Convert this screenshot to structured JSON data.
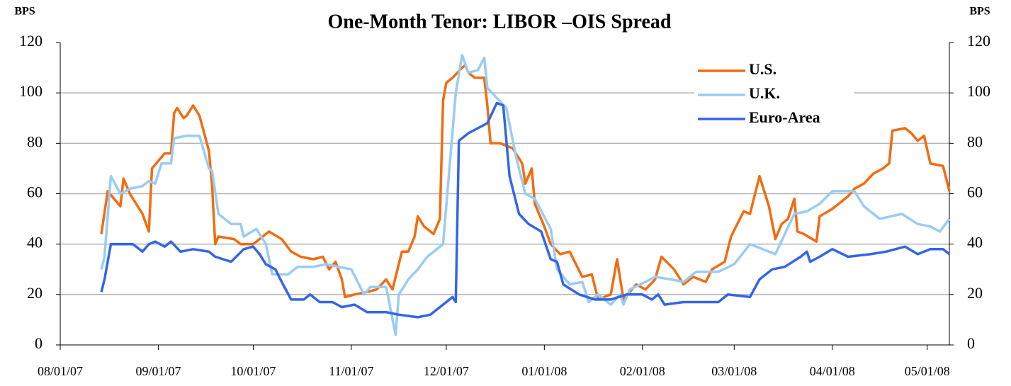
{
  "chart_data": {
    "type": "line",
    "title": "One-Month Tenor: LIBOR –OIS Spread",
    "y_label": "BPS",
    "y2_label": "BPS",
    "xlim": [
      "08/01/07",
      "05/08/08"
    ],
    "xticks": [
      "08/01/07",
      "09/01/07",
      "10/01/07",
      "11/01/07",
      "12/01/07",
      "01/01/08",
      "02/01/08",
      "03/01/08",
      "04/01/08",
      "05/01/08"
    ],
    "ylim": [
      0,
      120
    ],
    "yticks": [
      0,
      20,
      40,
      60,
      80,
      100,
      120
    ],
    "y2lim": [
      0,
      120
    ],
    "y2ticks": [
      0,
      20,
      40,
      60,
      80,
      100,
      120
    ],
    "grid": true,
    "legend": "upper right",
    "series": [
      {
        "name": "U.S.",
        "color": "#f26c0f",
        "x": [
          "08/14/07",
          "08/16/07",
          "08/20/07",
          "08/21/07",
          "08/23/07",
          "08/27/07",
          "08/29/07",
          "08/30/07",
          "09/03/07",
          "09/05/07",
          "09/06/07",
          "09/07/07",
          "09/09/07",
          "09/10/07",
          "09/12/07",
          "09/14/07",
          "09/17/07",
          "09/18/07",
          "09/19/07",
          "09/20/07",
          "09/25/07",
          "09/27/07",
          "10/01/07",
          "10/04/07",
          "10/06/07",
          "10/10/07",
          "10/13/07",
          "10/16/07",
          "10/20/07",
          "10/23/07",
          "10/25/07",
          "10/27/07",
          "10/29/07",
          "10/30/07",
          "11/02/07",
          "11/06/07",
          "11/09/07",
          "11/12/07",
          "11/14/07",
          "11/17/07",
          "11/19/07",
          "11/21/07",
          "11/22/07",
          "11/24/07",
          "11/27/07",
          "11/29/07",
          "11/30/07",
          "12/01/07",
          "12/03/07",
          "12/06/07",
          "12/07/07",
          "12/08/07",
          "12/10/07",
          "12/13/07",
          "12/14/07",
          "12/15/07",
          "12/18/07",
          "12/22/07",
          "12/25/07",
          "12/26/07",
          "12/28/07",
          "12/29/07",
          "01/01/08",
          "01/03/08",
          "01/06/08",
          "01/09/08",
          "01/13/08",
          "01/16/08",
          "01/18/08",
          "01/22/08",
          "01/24/08",
          "01/26/08",
          "01/30/08",
          "02/02/08",
          "02/05/08",
          "02/07/08",
          "02/11/08",
          "02/14/08",
          "02/17/08",
          "02/21/08",
          "02/23/08",
          "02/27/08",
          "02/29/08",
          "03/04/08",
          "03/06/08",
          "03/09/08",
          "03/12/08",
          "03/14/08",
          "03/16/08",
          "03/18/08",
          "03/20/08",
          "03/21/08",
          "03/23/08",
          "03/27/08",
          "03/28/08",
          "04/01/08",
          "04/06/08",
          "04/08/08",
          "04/11/08",
          "04/14/08",
          "04/17/08",
          "04/19/08",
          "04/20/08",
          "04/24/08",
          "04/26/08",
          "04/28/08",
          "04/30/08",
          "05/02/08",
          "05/06/08",
          "05/08/08"
        ],
        "values": [
          44,
          61,
          55,
          66,
          60,
          52,
          45,
          70,
          76,
          76,
          92,
          94,
          90,
          91,
          95,
          91,
          77,
          63,
          40,
          43,
          42,
          40,
          40,
          43,
          45,
          42,
          37,
          35,
          34,
          35,
          30,
          33,
          26,
          19,
          20,
          21,
          22,
          26,
          22,
          37,
          37,
          43,
          51,
          47,
          44,
          50,
          97,
          104,
          106,
          110,
          111,
          108,
          106,
          106,
          95,
          80,
          80,
          78,
          72,
          64,
          70,
          56,
          47,
          40,
          36,
          37,
          27,
          28,
          18,
          20,
          34,
          18,
          24,
          22,
          26,
          35,
          30,
          24,
          27,
          25,
          30,
          33,
          43,
          53,
          52,
          67,
          55,
          42,
          48,
          50,
          58,
          45,
          44,
          41,
          51,
          54,
          59,
          62,
          64,
          68,
          70,
          72,
          85,
          86,
          84,
          81,
          83,
          72,
          71,
          61
        ]
      },
      {
        "name": "U.K.",
        "color": "#99ccf5",
        "x": [
          "08/14/07",
          "08/15/07",
          "08/17/07",
          "08/20/07",
          "08/23/07",
          "08/27/07",
          "08/29/07",
          "08/31/07",
          "09/02/07",
          "09/05/07",
          "09/06/07",
          "09/10/07",
          "09/14/07",
          "09/17/07",
          "09/18/07",
          "09/20/07",
          "09/24/07",
          "09/27/07",
          "09/28/07",
          "10/02/07",
          "10/05/07",
          "10/07/07",
          "10/12/07",
          "10/15/07",
          "10/20/07",
          "10/24/07",
          "11/01/07",
          "11/05/07",
          "11/07/07",
          "11/12/07",
          "11/15/07",
          "11/16/07",
          "11/19/07",
          "11/22/07",
          "11/25/07",
          "11/30/07",
          "12/04/07",
          "12/06/07",
          "12/08/07",
          "12/11/07",
          "12/13/07",
          "12/14/07",
          "12/17/07",
          "12/20/07",
          "12/23/07",
          "12/26/07",
          "12/29/07",
          "01/03/08",
          "01/05/08",
          "01/09/08",
          "01/13/08",
          "01/15/08",
          "01/18/08",
          "01/22/08",
          "01/25/08",
          "01/26/08",
          "01/28/08",
          "02/02/08",
          "02/05/08",
          "02/10/08",
          "02/14/08",
          "02/18/08",
          "02/25/08",
          "03/01/08",
          "03/06/08",
          "03/10/08",
          "03/14/08",
          "03/17/08",
          "03/20/08",
          "03/24/08",
          "03/28/08",
          "04/01/08",
          "04/08/08",
          "04/11/08",
          "04/16/08",
          "04/23/08",
          "04/28/08",
          "05/02/08",
          "05/05/08",
          "05/08/08"
        ],
        "values": [
          30,
          35,
          67,
          60,
          62,
          63,
          65,
          64,
          72,
          72,
          82,
          83,
          83,
          70,
          69,
          52,
          48,
          48,
          43,
          46,
          40,
          28,
          28,
          31,
          31,
          32,
          30,
          20,
          23,
          23,
          4,
          20,
          26,
          30,
          35,
          40,
          100,
          115,
          108,
          109,
          114,
          102,
          98,
          94,
          75,
          60,
          58,
          46,
          30,
          24,
          25,
          17,
          20,
          16,
          20,
          16,
          22,
          25,
          27,
          26,
          25,
          29,
          29,
          32,
          40,
          38,
          36,
          44,
          52,
          53,
          56,
          61,
          61,
          55,
          50,
          52,
          48,
          47,
          45,
          50
        ]
      },
      {
        "name": "Euro-Area",
        "color": "#3366e6",
        "x": [
          "08/14/07",
          "08/15/07",
          "08/17/07",
          "08/24/07",
          "08/27/07",
          "08/29/07",
          "08/31/07",
          "09/03/07",
          "09/05/07",
          "09/08/07",
          "09/12/07",
          "09/17/07",
          "09/19/07",
          "09/24/07",
          "09/28/07",
          "10/01/07",
          "10/03/07",
          "10/05/07",
          "10/08/07",
          "10/10/07",
          "10/13/07",
          "10/17/07",
          "10/19/07",
          "10/22/07",
          "10/26/07",
          "10/29/07",
          "11/02/07",
          "11/06/07",
          "11/12/07",
          "11/16/07",
          "11/22/07",
          "11/26/07",
          "11/30/07",
          "12/03/07",
          "12/04/07",
          "12/05/07",
          "12/08/07",
          "12/11/07",
          "12/14/07",
          "12/17/07",
          "12/19/07",
          "12/21/07",
          "12/24/07",
          "12/27/07",
          "12/31/07",
          "01/03/08",
          "01/05/08",
          "01/07/08",
          "01/12/08",
          "01/17/08",
          "01/22/08",
          "01/27/08",
          "02/01/08",
          "02/04/08",
          "02/06/08",
          "02/08/08",
          "02/14/08",
          "02/20/08",
          "02/25/08",
          "02/28/08",
          "03/06/08",
          "03/09/08",
          "03/13/08",
          "03/17/08",
          "03/22/08",
          "03/24/08",
          "03/25/08",
          "03/28/08",
          "04/01/08",
          "04/06/08",
          "04/13/08",
          "04/18/08",
          "04/24/08",
          "04/28/08",
          "05/02/08",
          "05/06/08",
          "05/08/08"
        ],
        "values": [
          21,
          26,
          40,
          40,
          37,
          40,
          41,
          39,
          41,
          37,
          38,
          37,
          35,
          33,
          38,
          39,
          36,
          32,
          30,
          25,
          18,
          18,
          20,
          17,
          17,
          15,
          16,
          13,
          13,
          12,
          11,
          12,
          16,
          19,
          17,
          81,
          84,
          86,
          88,
          96,
          95,
          67,
          52,
          48,
          45,
          34,
          33,
          24,
          20,
          18,
          18,
          20,
          20,
          18,
          20,
          16,
          17,
          17,
          17,
          20,
          19,
          26,
          30,
          31,
          35,
          37,
          33,
          35,
          38,
          35,
          36,
          37,
          39,
          36,
          38,
          38,
          36
        ]
      }
    ]
  }
}
